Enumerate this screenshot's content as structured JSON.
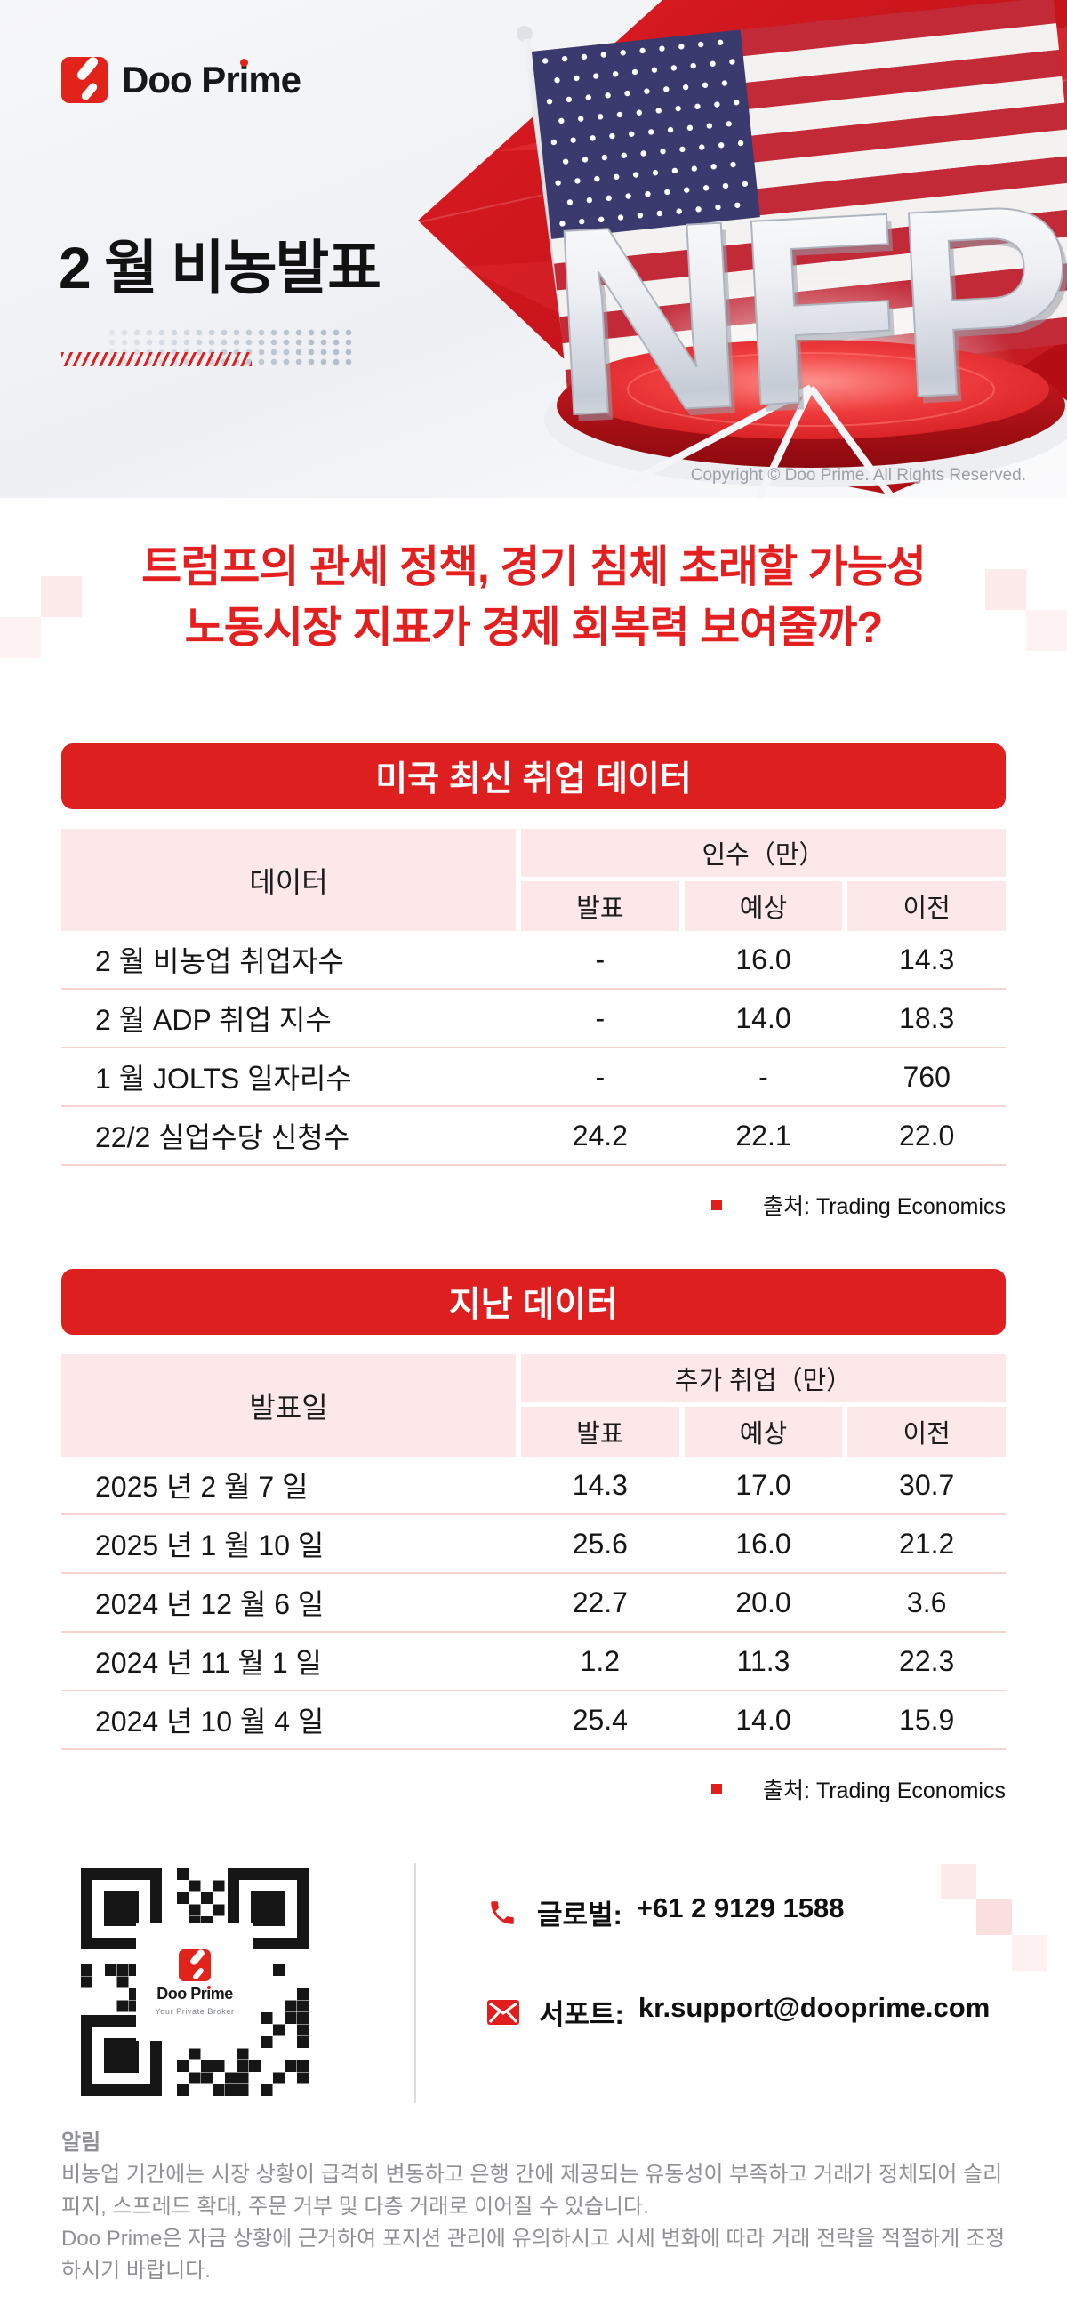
{
  "brand": {
    "logo_text": "Doo Prime",
    "copyright": "Copyright © Doo Prime. All Rights Reserved."
  },
  "hero": {
    "title": "2 월 비농발표",
    "nfp_text": "NFP"
  },
  "headline": {
    "line1": "트럼프의 관세 정책, 경기 침체 초래할 가능성",
    "line2": "노동시장 지표가 경제 회복력 보여줄까?"
  },
  "table1": {
    "banner": "미국 최신 취업 데이터",
    "col_header": "데이터",
    "group_header": "인수（만）",
    "sub_headers": [
      "발표",
      "예상",
      "이전"
    ],
    "rows": [
      {
        "label": "2 월 비농업 취업자수",
        "values": [
          "-",
          "16.0",
          "14.3"
        ]
      },
      {
        "label": "2 월 ADP 취업 지수",
        "values": [
          "-",
          "14.0",
          "18.3"
        ]
      },
      {
        "label": "1 월 JOLTS 일자리수",
        "values": [
          "-",
          "-",
          "760"
        ]
      },
      {
        "label": "22/2 실업수당 신청수",
        "values": [
          "24.2",
          "22.1",
          "22.0"
        ]
      }
    ],
    "source": "출처:  Trading Economics"
  },
  "table2": {
    "banner": "지난 데이터",
    "col_header": "발표일",
    "group_header": "추가 취업（만）",
    "sub_headers": [
      "발표",
      "예상",
      "이전"
    ],
    "rows": [
      {
        "label": "2025 년 2 월 7 일",
        "values": [
          "14.3",
          "17.0",
          "30.7"
        ]
      },
      {
        "label": "2025 년 1 월 10 일",
        "values": [
          "25.6",
          "16.0",
          "21.2"
        ]
      },
      {
        "label": "2024 년 12 월 6 일",
        "values": [
          "22.7",
          "20.0",
          "3.6"
        ]
      },
      {
        "label": "2024 년 11 월 1 일",
        "values": [
          "1.2",
          "11.3",
          "22.3"
        ]
      },
      {
        "label": "2024 년 10 월 4 일",
        "values": [
          "25.4",
          "14.0",
          "15.9"
        ]
      }
    ],
    "source": "출처:  Trading Economics"
  },
  "contact": {
    "qr_name": "Doo Prime",
    "qr_tagline": "Your Private Broker",
    "phone_label": "글로벌:",
    "phone_value": "+61 2 9129 1588",
    "email_label": "서포트:",
    "email_value": "kr.support@dooprime.com"
  },
  "notice": {
    "title": "알림",
    "para1": "비농업 기간에는 시장 상황이 급격히 변동하고 은행 간에 제공되는 유동성이 부족하고 거래가 정체되어 슬리피지, 스프레드 확대, 주문 거부 및 다층 거래로 이어질 수 있습니다.",
    "para2": "Doo Prime은 자금 상황에 근거하여 포지션 관리에 유의하시고 시세 변화에 따라 거래 전략을 적절하게 조정하시기 바랍니다."
  },
  "colors": {
    "brand_red": "#e01e1e",
    "deep_red": "#c8101a",
    "table_pink": "#fce8e8",
    "divider_pink": "#f7d3d3",
    "notice_gray": "#8f9094"
  }
}
